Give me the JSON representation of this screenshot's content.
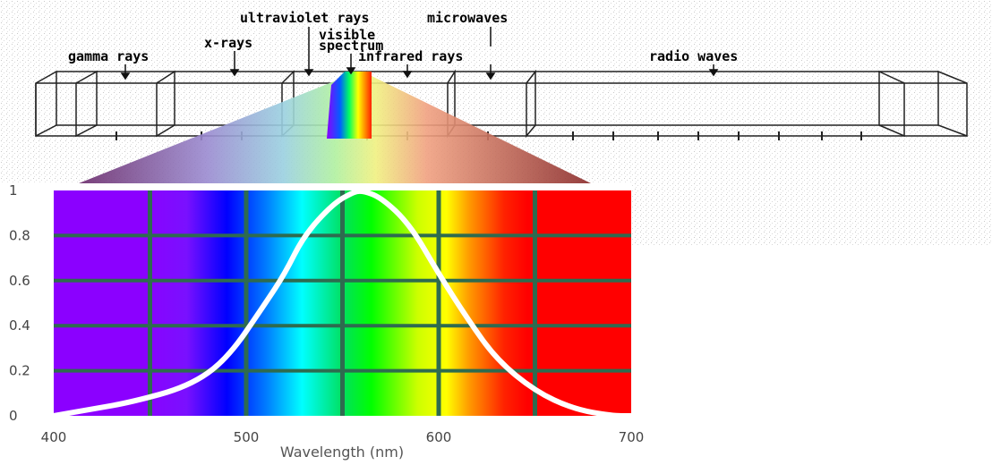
{
  "spectrum": {
    "labels": {
      "gamma": "gamma rays",
      "xray": "x-rays",
      "uv": "ultraviolet rays",
      "visible1": "visible",
      "visible2": "spectrum",
      "infrared": "infrared rays",
      "microwaves": "microwaves",
      "radio": "radio waves"
    }
  },
  "chart_data": {
    "type": "line",
    "xlabel": "Wavelength (nm)",
    "ylabel": "",
    "xlim": [
      400,
      700
    ],
    "ylim": [
      0,
      1
    ],
    "x_ticks": [
      400,
      500,
      600,
      700
    ],
    "y_ticks": [
      0,
      0.2,
      0.4,
      0.6,
      0.8,
      1
    ],
    "y_tick_labels": [
      "0",
      "0.2",
      "0.4",
      "0.6",
      "0.8",
      "1"
    ],
    "grid": true,
    "series": [
      {
        "x": [
          400,
          420,
          440,
          470,
          490,
          510,
          520,
          530,
          545,
          555,
          560,
          570,
          585,
          600,
          615,
          630,
          650,
          670,
          690,
          700
        ],
        "y": [
          0.0,
          0.03,
          0.06,
          0.13,
          0.25,
          0.5,
          0.63,
          0.8,
          0.94,
          0.99,
          1.0,
          0.97,
          0.85,
          0.63,
          0.43,
          0.25,
          0.11,
          0.03,
          0.0,
          0.0
        ]
      }
    ],
    "colors": {
      "grid": "#2e6b4f",
      "curve": "#ffffff"
    }
  }
}
